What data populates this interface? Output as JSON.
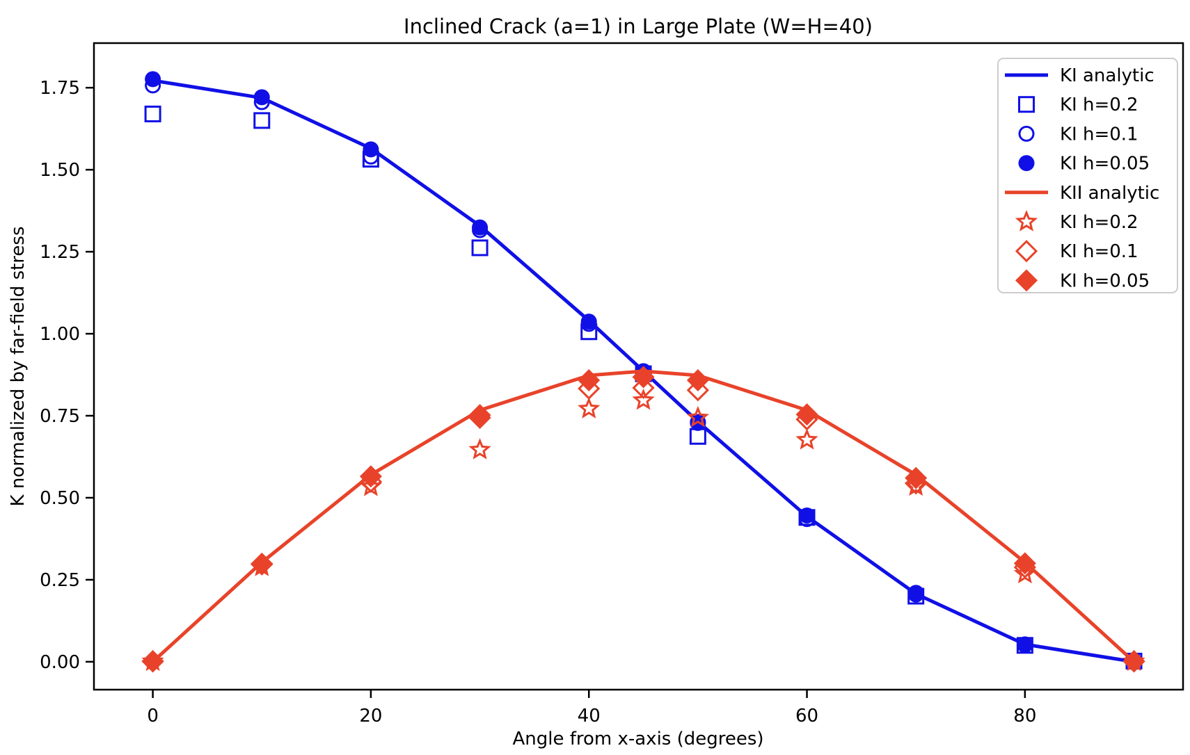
{
  "chart_data": {
    "type": "line",
    "title": "Inclined Crack (a=1) in Large Plate (W=H=40)",
    "xlabel": "Angle from x-axis (degrees)",
    "ylabel": "K normalized by far-field stress",
    "xlim": [
      -5.4,
      94.5
    ],
    "ylim": [
      -0.085,
      1.886
    ],
    "x_ticks": [
      "0",
      "20",
      "40",
      "60",
      "80"
    ],
    "y_ticks": [
      "0.00",
      "0.25",
      "0.50",
      "0.75",
      "1.00",
      "1.25",
      "1.50",
      "1.75"
    ],
    "grid": false,
    "legend_position": "upper right",
    "x": [
      0,
      10,
      20,
      30,
      40,
      45,
      50,
      60,
      70,
      80,
      90
    ],
    "series": [
      {
        "name": "KI analytic",
        "kind": "line",
        "marker": "none",
        "color": "#1010e6",
        "values": [
          1.772,
          1.719,
          1.565,
          1.329,
          1.04,
          0.886,
          0.732,
          0.443,
          0.207,
          0.053,
          0.0
        ]
      },
      {
        "name": "KI h=0.2",
        "kind": "marker",
        "marker": "open-square",
        "color": "#1010e6",
        "values": [
          1.67,
          1.65,
          1.532,
          1.262,
          1.006,
          0.878,
          0.687,
          0.44,
          0.2,
          0.05,
          0.002
        ]
      },
      {
        "name": "KI h=0.1",
        "kind": "marker",
        "marker": "open-circle",
        "color": "#1010e6",
        "values": [
          1.757,
          1.706,
          1.54,
          1.316,
          1.03,
          0.883,
          0.728,
          0.435,
          0.205,
          0.051,
          0.002
        ]
      },
      {
        "name": "KI h=0.05",
        "kind": "marker",
        "marker": "filled-circle",
        "color": "#1010e6",
        "values": [
          1.776,
          1.721,
          1.562,
          1.324,
          1.037,
          0.886,
          0.731,
          0.446,
          0.21,
          0.053,
          0.003
        ]
      },
      {
        "name": "KII analytic",
        "kind": "line",
        "marker": "none",
        "color": "#e8432a",
        "values": [
          0.0,
          0.303,
          0.57,
          0.767,
          0.873,
          0.886,
          0.873,
          0.767,
          0.57,
          0.303,
          0.0
        ]
      },
      {
        "name": "KI h=0.2",
        "kind": "marker",
        "marker": "open-star",
        "color": "#e8432a",
        "values": [
          0.001,
          0.29,
          0.534,
          0.646,
          0.771,
          0.797,
          0.744,
          0.676,
          0.535,
          0.268,
          0.001
        ]
      },
      {
        "name": "KI h=0.1",
        "kind": "marker",
        "marker": "open-diamond",
        "color": "#e8432a",
        "values": [
          0.001,
          0.297,
          0.549,
          0.744,
          0.833,
          0.835,
          0.828,
          0.739,
          0.544,
          0.288,
          0.001
        ]
      },
      {
        "name": "KI h=0.05",
        "kind": "marker",
        "marker": "filled-diamond",
        "color": "#e8432a",
        "values": [
          0.002,
          0.299,
          0.565,
          0.752,
          0.858,
          0.868,
          0.858,
          0.754,
          0.56,
          0.3,
          0.002
        ]
      }
    ]
  },
  "colors": {
    "ki_blue": "#1010e6",
    "kii_red": "#e8432a",
    "axis": "#000000",
    "legend_border": "#cccccc",
    "background": "#ffffff"
  }
}
